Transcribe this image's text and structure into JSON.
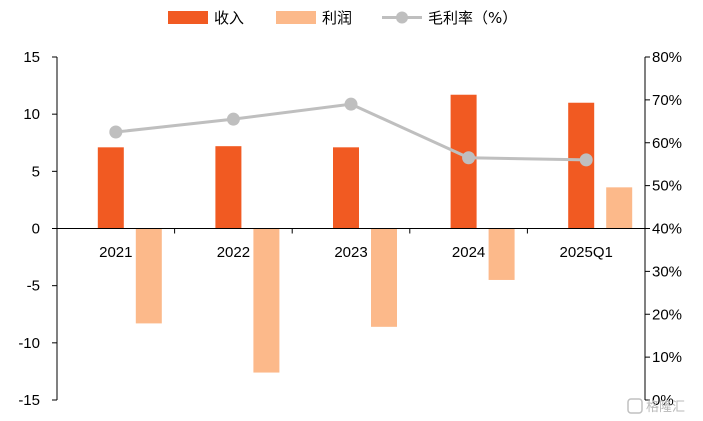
{
  "chart_data": {
    "type": "bar",
    "categories": [
      "2021",
      "2022",
      "2023",
      "2024",
      "2025Q1"
    ],
    "series": [
      {
        "name": "收入",
        "kind": "bar",
        "axis": "left",
        "color": "#f15a22",
        "values": [
          7.1,
          7.2,
          7.1,
          11.7,
          11.0
        ]
      },
      {
        "name": "利润",
        "kind": "bar",
        "axis": "left",
        "color": "#fcb98a",
        "values": [
          -8.3,
          -12.6,
          -8.6,
          -4.5,
          3.6
        ]
      },
      {
        "name": "毛利率（%）",
        "kind": "line",
        "axis": "right",
        "color": "#bfbfbf",
        "values": [
          62.5,
          65.5,
          69.0,
          56.5,
          56.0
        ]
      }
    ],
    "y_left": {
      "ticks": [
        "15",
        "10",
        "5",
        "0",
        "-5",
        "-10",
        "-15"
      ],
      "ylim": [
        -15,
        15
      ]
    },
    "y_right": {
      "ticks": [
        "80%",
        "70%",
        "60%",
        "50%",
        "40%",
        "30%",
        "20%",
        "10%",
        "0%"
      ],
      "ylim": [
        0,
        80
      ]
    },
    "legend_position": "top",
    "grid": false
  },
  "watermark": "格隆汇"
}
